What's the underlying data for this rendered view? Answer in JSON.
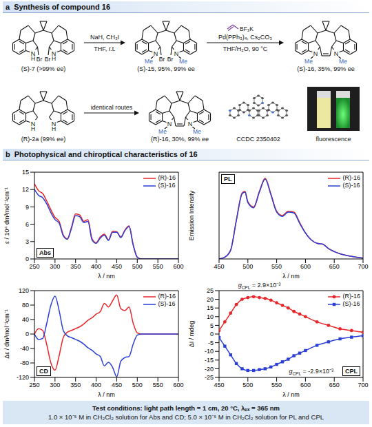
{
  "panel_a": {
    "letter": "a",
    "title": "Synthesis of compound 16",
    "molecules": [
      {
        "label": "(S)-7 (>99% ee)",
        "n": "N",
        "n_sub": "H",
        "br": "Br"
      },
      {
        "label": "(S)-15, 95%, 99% ee",
        "n": "N",
        "n_sub": "Me",
        "br": "Br"
      },
      {
        "label": "(S)-16, 35%, 99% ee",
        "n": "N",
        "n_sub": "Me",
        "bridge": true
      },
      {
        "label": "(R)-2a (99% ee)",
        "n": "N",
        "n_sub": "H"
      },
      {
        "label": "(R)-16, 30%, 99% ee",
        "n": "N",
        "n_sub": "Me",
        "bridge": true
      }
    ],
    "arrows": [
      {
        "above": [
          "NaH, CH₃I"
        ],
        "below": [
          "THF, r.t."
        ]
      },
      {
        "reagent": "BF₃K",
        "above": [
          "Pd(PPh₃)₄, Cs₂CO₃"
        ],
        "below": [
          "THF/H₂O, 90 °C"
        ]
      },
      {
        "above": [
          "identical routes"
        ]
      }
    ],
    "crystal": {
      "label": "CCDC 2350402"
    },
    "photo": {
      "label": "fluorescence"
    }
  },
  "panel_b": {
    "letter": "b",
    "title": "Photophysical and chiroptical characteristics of 16"
  },
  "chart_data": [
    {
      "type": "line",
      "tag": "Abs",
      "xlabel": "λ / nm",
      "ylabel": "ε / 10⁴ dm³mol⁻¹cm⁻¹",
      "x": [
        250,
        260,
        270,
        280,
        290,
        300,
        310,
        320,
        330,
        340,
        350,
        360,
        370,
        380,
        390,
        400,
        410,
        420,
        430,
        440,
        450,
        460,
        470,
        480,
        490,
        500,
        510,
        600
      ],
      "series": [
        {
          "name": "(R)-16",
          "color": "#e8262a",
          "values": [
            13,
            11.8,
            11.3,
            10,
            8.5,
            7.2,
            6.5,
            4.2,
            3.5,
            5.5,
            7.8,
            7.6,
            6.5,
            6.8,
            3.5,
            2.8,
            3.8,
            4.3,
            3.3,
            4.8,
            4.7,
            3.8,
            5,
            5.7,
            2.5,
            0.3,
            0,
            0
          ]
        },
        {
          "name": "(S)-16",
          "color": "#2b3fd6",
          "values": [
            12,
            11,
            10.6,
            9.5,
            8,
            6.8,
            6.2,
            4,
            3.4,
            5.3,
            7.5,
            7.3,
            6.3,
            6.5,
            3.3,
            2.7,
            3.6,
            4.1,
            3.2,
            4.6,
            4.6,
            3.7,
            4.9,
            5.6,
            2.4,
            0.3,
            0,
            0
          ]
        }
      ],
      "xlim": [
        250,
        600
      ],
      "xticks": [
        250,
        300,
        350,
        400,
        450,
        500,
        550,
        600
      ],
      "ylim": [
        0,
        15
      ],
      "yticks": [
        0,
        3,
        6,
        9,
        12,
        15
      ],
      "legend": "top-right"
    },
    {
      "type": "line",
      "tag": "PL",
      "xlabel": "λ / nm",
      "ylabel": "Emission Intensity",
      "x": [
        450,
        460,
        470,
        480,
        490,
        495,
        500,
        510,
        520,
        530,
        540,
        550,
        560,
        570,
        580,
        590,
        600,
        610,
        620,
        630,
        640,
        660,
        680,
        700
      ],
      "series": [
        {
          "name": "(R)-16",
          "color": "#e8262a",
          "values": [
            0,
            0.02,
            0.1,
            0.45,
            0.76,
            0.78,
            0.66,
            0.6,
            0.78,
            0.93,
            0.75,
            0.55,
            0.5,
            0.55,
            0.54,
            0.42,
            0.3,
            0.22,
            0.18,
            0.17,
            0.12,
            0.06,
            0.03,
            0.01
          ]
        },
        {
          "name": "(S)-16",
          "color": "#2b3fd6",
          "values": [
            0,
            0.02,
            0.1,
            0.44,
            0.75,
            0.77,
            0.65,
            0.59,
            0.77,
            0.92,
            0.74,
            0.54,
            0.49,
            0.54,
            0.53,
            0.41,
            0.3,
            0.22,
            0.18,
            0.17,
            0.12,
            0.06,
            0.03,
            0.01
          ]
        }
      ],
      "xlim": [
        450,
        700
      ],
      "xticks": [
        450,
        500,
        550,
        600,
        650,
        700
      ],
      "ylim": [
        0,
        1
      ],
      "tick_labels": "x",
      "legend": "top-right"
    },
    {
      "type": "line",
      "tag": "CD",
      "xlabel": "λ / nm",
      "ylabel": "Δε / dm³mol⁻¹cm⁻¹",
      "x": [
        250,
        260,
        270,
        280,
        290,
        300,
        310,
        320,
        330,
        340,
        350,
        360,
        370,
        380,
        390,
        400,
        410,
        420,
        430,
        440,
        450,
        460,
        470,
        480,
        490,
        500,
        510,
        600
      ],
      "series": [
        {
          "name": "(R)-16",
          "color": "#e8262a",
          "values": [
            0,
            15,
            10,
            -30,
            -80,
            -100,
            -60,
            -10,
            5,
            10,
            15,
            20,
            28,
            38,
            45,
            55,
            62,
            85,
            75,
            92,
            108,
            70,
            65,
            75,
            30,
            3,
            0,
            0
          ]
        },
        {
          "name": "(S)-16",
          "color": "#2b3fd6",
          "values": [
            0,
            -15,
            -12,
            30,
            80,
            105,
            65,
            10,
            -5,
            -10,
            -15,
            -20,
            -28,
            -38,
            -45,
            -55,
            -62,
            -88,
            -78,
            -92,
            -118,
            -75,
            -65,
            -62,
            -28,
            -3,
            0,
            0
          ]
        }
      ],
      "xlim": [
        250,
        600
      ],
      "xticks": [
        250,
        300,
        350,
        400,
        450,
        500,
        550,
        600
      ],
      "ylim": [
        -120,
        120
      ],
      "yticks": [
        -120,
        -80,
        -40,
        0,
        40,
        80,
        120
      ],
      "legend": "top-right"
    },
    {
      "type": "line",
      "tag": "CPL",
      "xlabel": "λ / nm",
      "ylabel": "ΔI / mdeg",
      "x": [
        450,
        460,
        470,
        480,
        490,
        500,
        510,
        520,
        530,
        540,
        550,
        560,
        570,
        580,
        590,
        600,
        620,
        640,
        660,
        680,
        700
      ],
      "series": [
        {
          "name": "(R)-16",
          "color": "#e8262a",
          "marker": "circle",
          "values": [
            2,
            7,
            12,
            17,
            20,
            21,
            21.5,
            21,
            20.5,
            19.5,
            18,
            16.5,
            15,
            13,
            11.5,
            10,
            7,
            5,
            3,
            2,
            1
          ]
        },
        {
          "name": "(S)-16",
          "color": "#2b3fd6",
          "marker": "square",
          "values": [
            -2,
            -7,
            -12,
            -17,
            -20,
            -21,
            -21,
            -20.5,
            -20,
            -19,
            -17.5,
            -16,
            -14.5,
            -12.5,
            -11,
            -9.5,
            -6.5,
            -4.5,
            -2.8,
            -1.8,
            -1
          ]
        }
      ],
      "xlim": [
        450,
        700
      ],
      "xticks": [
        450,
        500,
        550,
        600,
        650,
        700
      ],
      "ylim": [
        -25,
        25
      ],
      "yticks": [
        -25,
        -20,
        -15,
        -10,
        -5,
        0,
        5,
        10,
        15,
        20,
        25
      ],
      "legend": "top-right",
      "annotations": [
        {
          "text": "g",
          "subscript": "CPL",
          "suffix": " = 2.9×10⁻³"
        },
        {
          "text": "g",
          "subscript": "CPL",
          "suffix": " = -2.9×10⁻³"
        }
      ]
    }
  ],
  "footer": {
    "lines": [
      "Test conditions: light path length = 1 cm, 20 °C, λₑₓ = 365 nm",
      "1.0 × 10⁻⁵ M in CH₂Cl₂ solution for Abs and CD; 5.0 × 10⁻⁵ M in CH₂Cl₂ solution for PL and CPL"
    ]
  }
}
